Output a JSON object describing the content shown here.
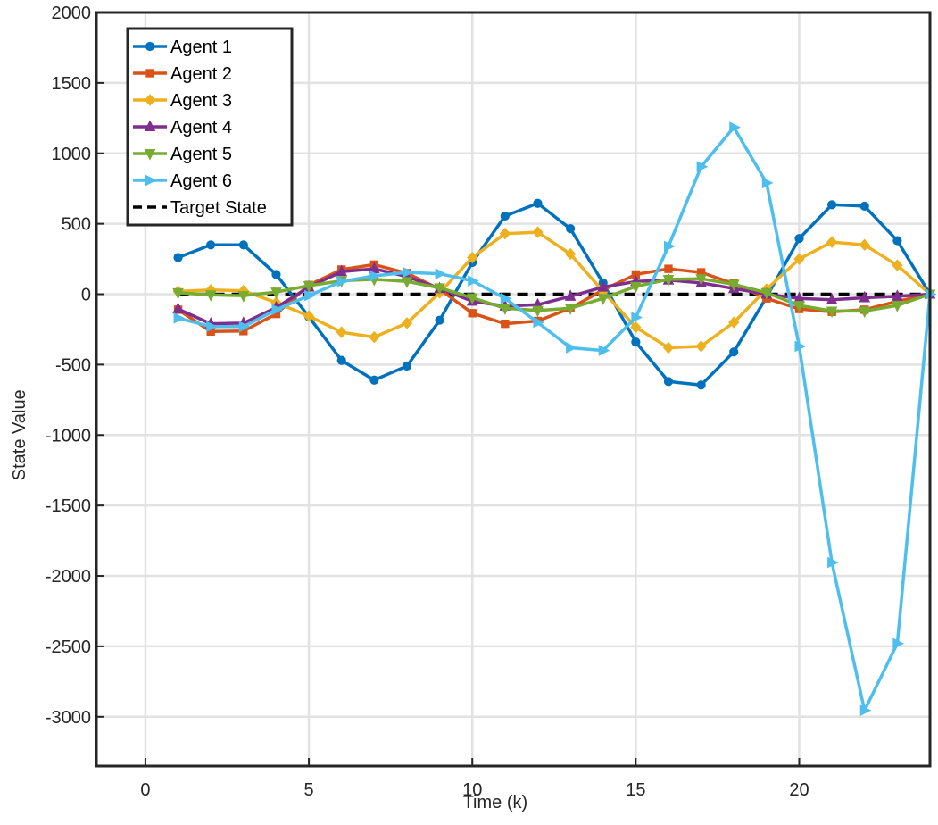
{
  "chart_data": {
    "type": "line",
    "title": "",
    "xlabel": "Time (k)",
    "ylabel": "State Value",
    "xlim": [
      -1.5,
      24
    ],
    "ylim": [
      -3350,
      2000
    ],
    "xticks": [
      0,
      5,
      10,
      15,
      20
    ],
    "yticks": [
      2000,
      1500,
      1000,
      500,
      0,
      -500,
      -1000,
      -1500,
      -2000,
      -2500,
      -3000
    ],
    "xtick_labels": [
      "0",
      "5",
      "10",
      "15",
      "20"
    ],
    "ytick_labels": [
      "2000",
      "1500",
      "1000",
      "500",
      "0",
      "-500",
      "-1000",
      "-1500",
      "-2000",
      "-2500",
      "-3000"
    ],
    "grid": true,
    "legend_position": "top-left",
    "x": [
      1,
      2,
      3,
      4,
      5,
      6,
      7,
      8,
      9,
      10,
      11,
      12,
      13,
      14,
      15,
      16,
      17,
      18,
      19,
      20,
      21,
      22,
      23,
      24
    ],
    "series": [
      {
        "name": "Agent 1",
        "color": "#0072BD",
        "marker": "circle",
        "values": [
          260,
          350,
          350,
          140,
          -160,
          -470,
          -610,
          -510,
          -185,
          225,
          555,
          645,
          465,
          80,
          -340,
          -620,
          -645,
          -410,
          -20,
          395,
          635,
          625,
          380,
          0
        ]
      },
      {
        "name": "Agent 2",
        "color": "#D95319",
        "marker": "square",
        "values": [
          -110,
          -265,
          -262,
          -140,
          65,
          175,
          210,
          150,
          35,
          -135,
          -210,
          -190,
          -100,
          30,
          140,
          180,
          155,
          75,
          -30,
          -105,
          -125,
          -110,
          -50,
          0
        ]
      },
      {
        "name": "Agent 3",
        "color": "#EDB120",
        "marker": "diamond",
        "values": [
          20,
          30,
          25,
          -60,
          -155,
          -270,
          -305,
          -205,
          10,
          260,
          430,
          440,
          285,
          20,
          -235,
          -380,
          -370,
          -200,
          35,
          250,
          370,
          350,
          205,
          0
        ]
      },
      {
        "name": "Agent 4",
        "color": "#7E2F8E",
        "marker": "triangle-up",
        "values": [
          -105,
          -210,
          -205,
          -95,
          50,
          160,
          180,
          125,
          40,
          -50,
          -85,
          -75,
          -15,
          50,
          90,
          100,
          80,
          40,
          0,
          -30,
          -40,
          -25,
          -15,
          0
        ]
      },
      {
        "name": "Agent 5",
        "color": "#77AC30",
        "marker": "triangle-down",
        "values": [
          10,
          -5,
          -10,
          15,
          60,
          95,
          105,
          90,
          45,
          -25,
          -100,
          -115,
          -100,
          -30,
          55,
          105,
          110,
          70,
          10,
          -80,
          -120,
          -120,
          -80,
          0
        ]
      },
      {
        "name": "Agent 6",
        "color": "#4DBEEE",
        "marker": "triangle-right",
        "values": [
          -170,
          -230,
          -230,
          -110,
          -10,
          90,
          130,
          155,
          145,
          95,
          -30,
          -200,
          -380,
          -400,
          -165,
          340,
          905,
          1185,
          790,
          -370,
          -1905,
          -2955,
          -2480,
          0
        ]
      },
      {
        "name": "Target State",
        "color": "#000000",
        "marker": "none",
        "dash": "dashed",
        "values": [
          0,
          0,
          0,
          0,
          0,
          0,
          0,
          0,
          0,
          0,
          0,
          0,
          0,
          0,
          0,
          0,
          0,
          0,
          0,
          0,
          0,
          0,
          0,
          0
        ]
      }
    ]
  }
}
